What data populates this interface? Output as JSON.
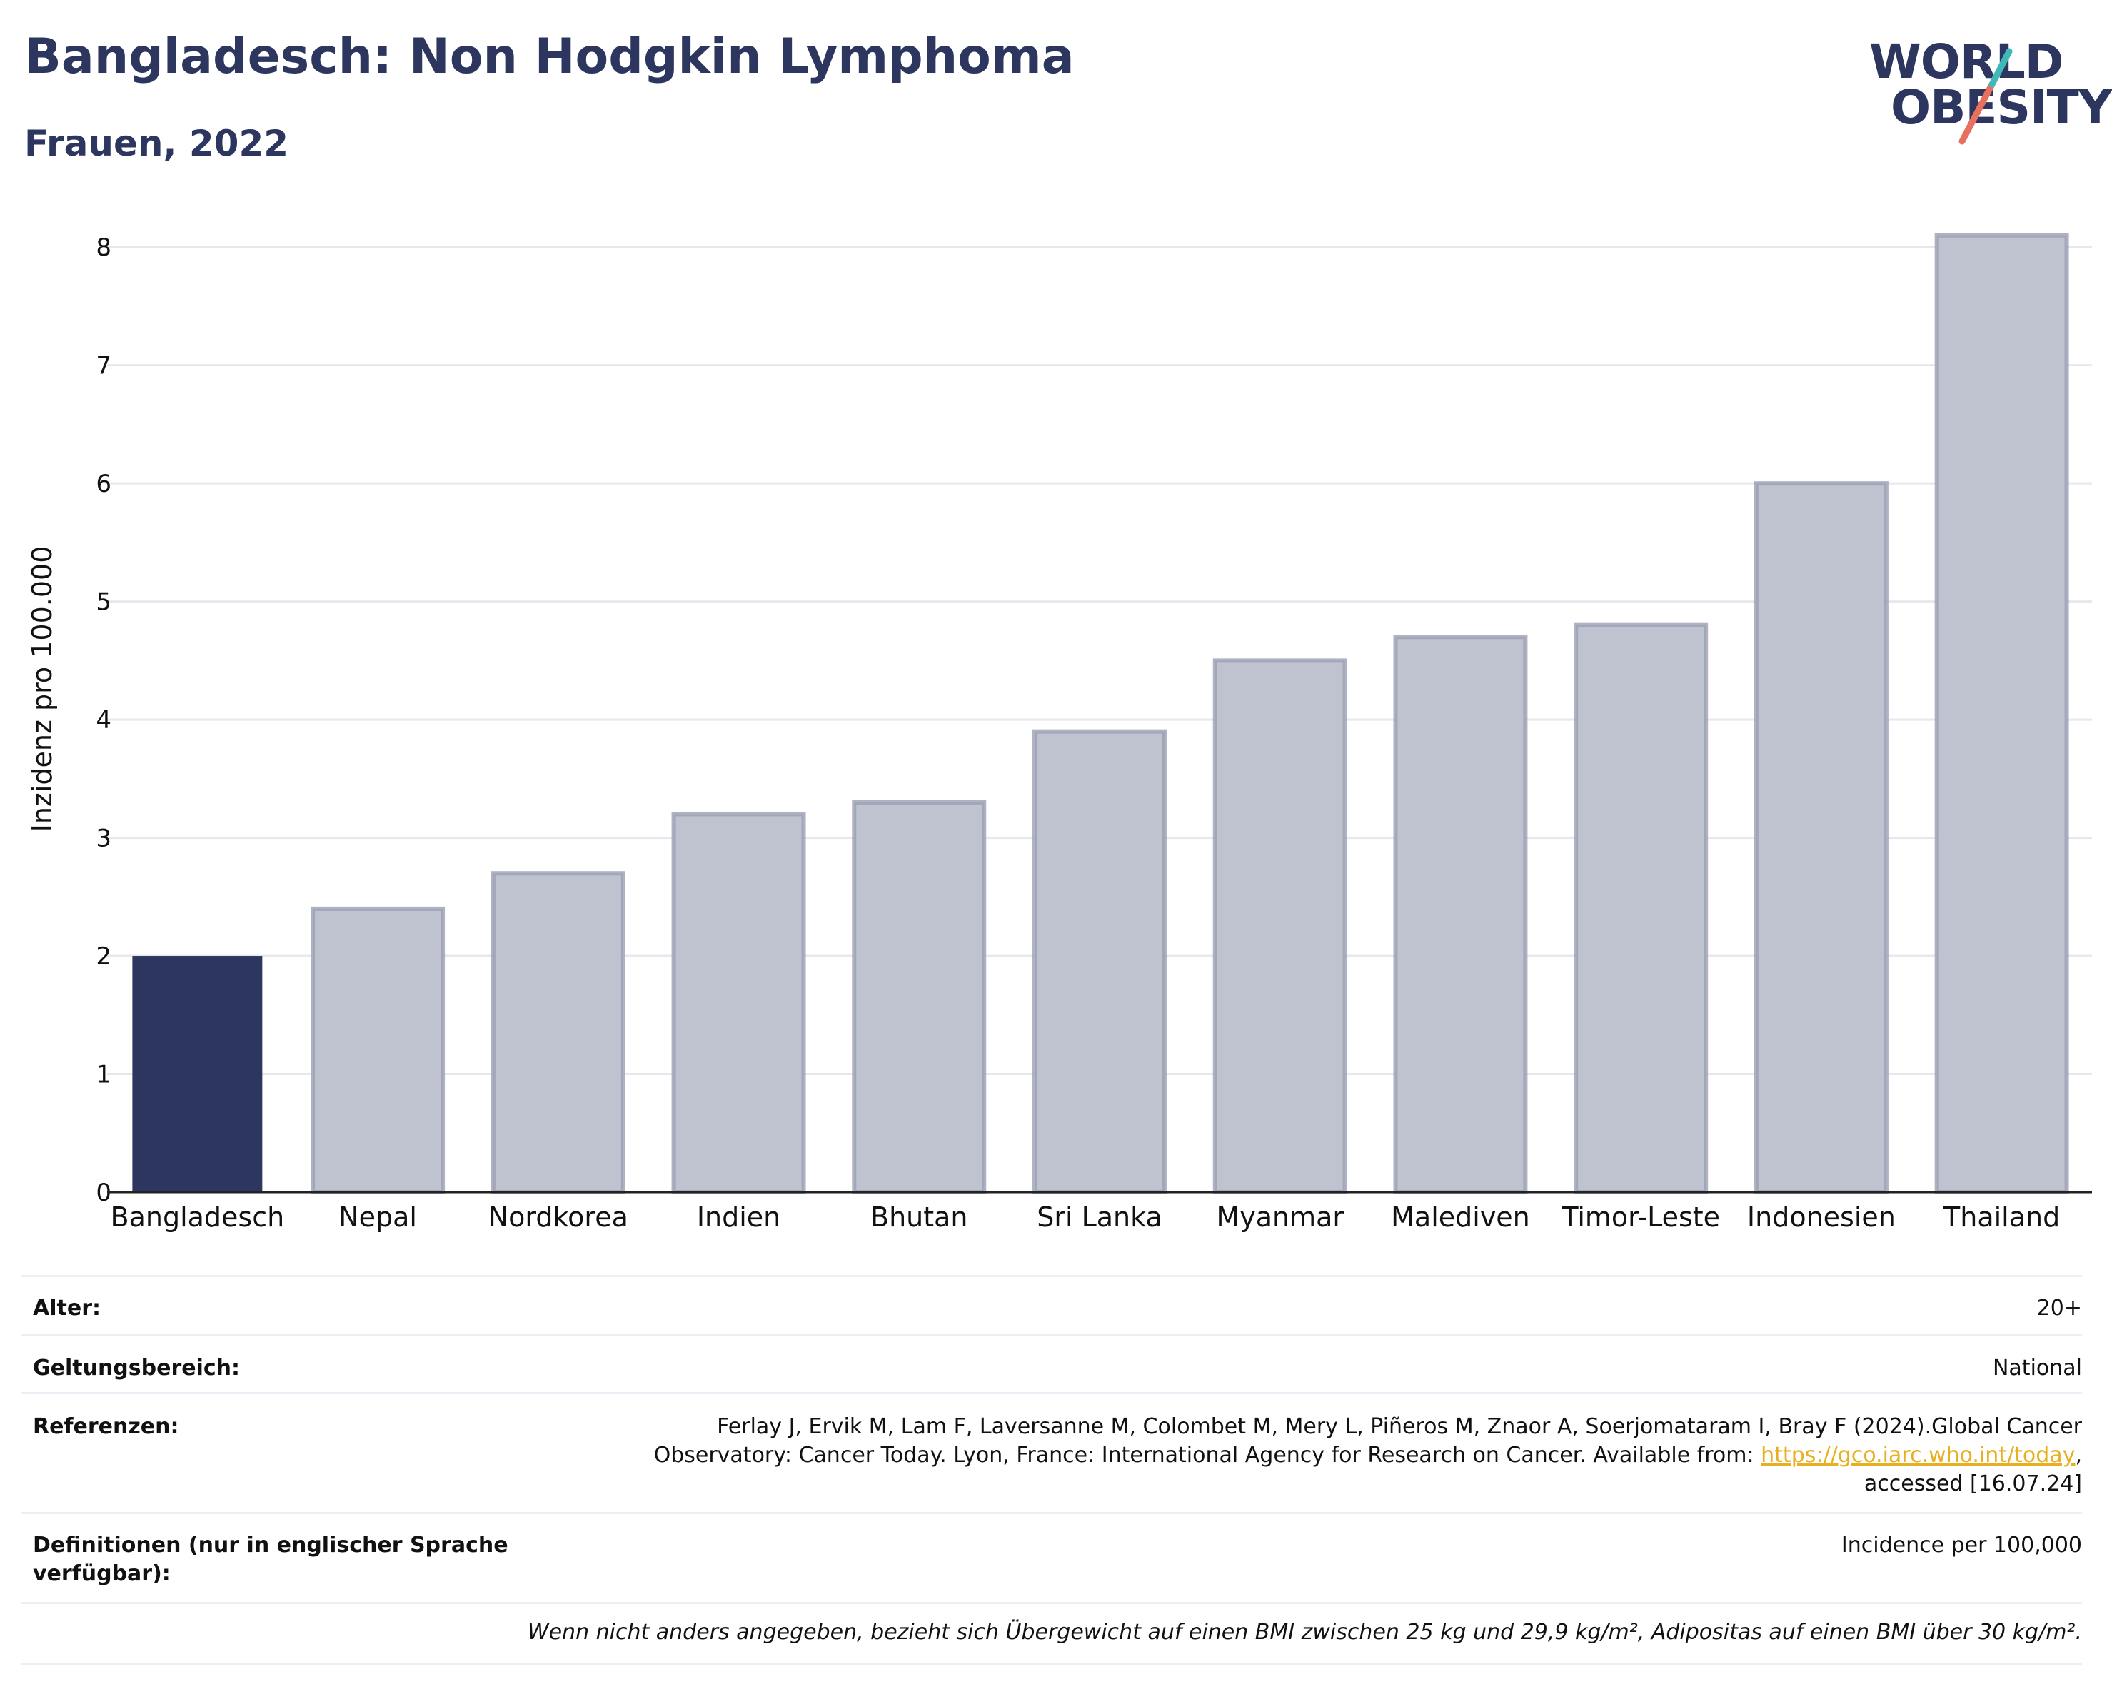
{
  "header": {
    "title": "Bangladesch: Non Hodgkin Lymphoma",
    "subtitle": "Frauen, 2022"
  },
  "logo": {
    "line1": "WORLD",
    "line2": "OBESITY",
    "colors": [
      "#2c365e",
      "#e8705e",
      "#3fb8b8"
    ]
  },
  "chart_data": {
    "type": "bar",
    "title": "Bangladesch: Non Hodgkin Lymphoma",
    "subtitle": "Frauen, 2022",
    "ylabel": "Inzidenz pro 100.000",
    "xlabel": "",
    "categories": [
      "Bangladesch",
      "Nepal",
      "Nordkorea",
      "Indien",
      "Bhutan",
      "Sri Lanka",
      "Myanmar",
      "Malediven",
      "Timor-Leste",
      "Indonesien",
      "Thailand"
    ],
    "values": [
      2.0,
      2.4,
      2.7,
      3.2,
      3.3,
      3.9,
      4.5,
      4.7,
      4.8,
      6.0,
      8.1
    ],
    "highlight": "Bangladesch",
    "ylim": [
      0,
      8.4
    ],
    "yticks": [
      0,
      1,
      2,
      3,
      4,
      5,
      6,
      7,
      8
    ],
    "grid": true,
    "colors": {
      "highlight": "#2c365e",
      "other": "#bfc3cf",
      "other_border": "#9a9fb3"
    }
  },
  "meta": {
    "rows": [
      {
        "key": "Alter:",
        "value": "20+"
      },
      {
        "key": "Geltungsbereich:",
        "value": "National"
      },
      {
        "key": "Referenzen:",
        "value_line1": "Ferlay J, Ervik M, Lam F, Laversanne M, Colombet M, Mery L, Piñeros M, Znaor A, Soerjomataram I, Bray F (2024).Global Cancer",
        "value_line2a": "Observatory: Cancer Today. Lyon, France: International Agency for Research on Cancer. Available from: ",
        "link": "https://gco.iarc.who.int/today",
        "value_line2b": ",",
        "value_line3": "accessed [16.07.24]"
      },
      {
        "key_line1": "Definitionen (nur in englischer Sprache",
        "key_line2": "verfügbar):",
        "value": "Incidence per 100,000"
      }
    ],
    "note": "Wenn nicht anders angegeben, bezieht sich Übergewicht auf einen BMI zwischen 25 kg und 29,9 kg/m², Adipositas auf einen BMI über 30 kg/m²."
  }
}
